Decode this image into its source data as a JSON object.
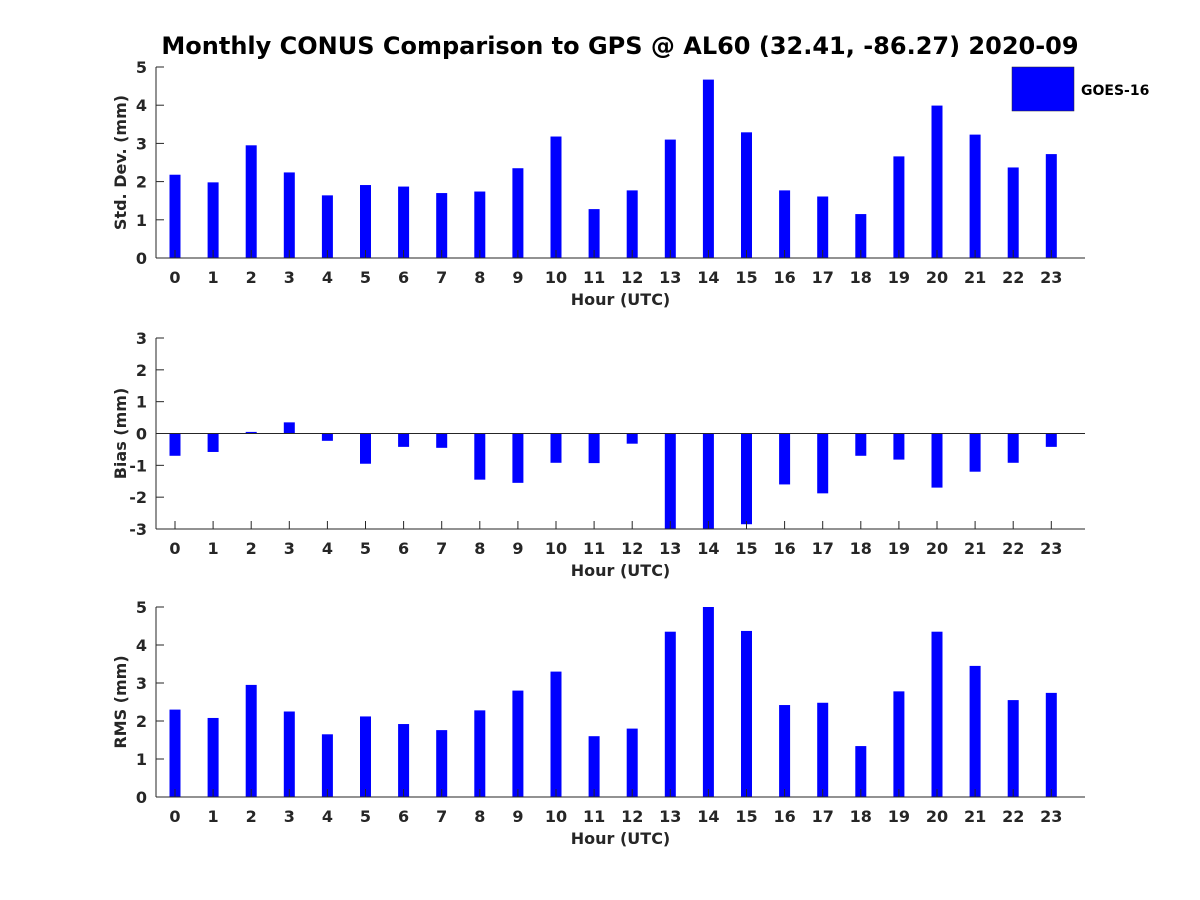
{
  "title": "Monthly CONUS Comparison to GPS @ AL60 (32.41, -86.27) 2020-09",
  "legend": {
    "label": "GOES-16",
    "color": "#0000ff",
    "placement": "top-right"
  },
  "chart_data": [
    {
      "type": "bar",
      "xlabel": "Hour (UTC)",
      "ylabel": "Std. Dev. (mm)",
      "ylim": [
        0,
        5
      ],
      "yticks": [
        0,
        1,
        2,
        3,
        4,
        5
      ],
      "categories": [
        "0",
        "1",
        "2",
        "3",
        "4",
        "5",
        "6",
        "7",
        "8",
        "9",
        "10",
        "11",
        "12",
        "13",
        "14",
        "15",
        "16",
        "17",
        "18",
        "19",
        "20",
        "21",
        "22",
        "23"
      ],
      "series": [
        {
          "name": "GOES-16",
          "color": "#0000ff",
          "values": [
            2.18,
            1.98,
            2.95,
            2.24,
            1.64,
            1.91,
            1.87,
            1.7,
            1.74,
            2.35,
            3.18,
            1.28,
            1.77,
            3.1,
            4.67,
            3.29,
            1.77,
            1.61,
            1.15,
            2.66,
            3.99,
            3.23,
            2.37,
            2.72
          ]
        }
      ]
    },
    {
      "type": "bar",
      "xlabel": "Hour (UTC)",
      "ylabel": "Bias (mm)",
      "ylim": [
        -3,
        3
      ],
      "yticks": [
        -3,
        -2,
        -1,
        0,
        1,
        2,
        3
      ],
      "categories": [
        "0",
        "1",
        "2",
        "3",
        "4",
        "5",
        "6",
        "7",
        "8",
        "9",
        "10",
        "11",
        "12",
        "13",
        "14",
        "15",
        "16",
        "17",
        "18",
        "19",
        "20",
        "21",
        "22",
        "23"
      ],
      "series": [
        {
          "name": "GOES-16",
          "color": "#0000ff",
          "values": [
            -0.7,
            -0.58,
            0.05,
            0.35,
            -0.23,
            -0.95,
            -0.42,
            -0.45,
            -1.45,
            -1.55,
            -0.92,
            -0.93,
            -0.32,
            -3.0,
            -3.0,
            -2.85,
            -1.6,
            -1.88,
            -0.7,
            -0.82,
            -1.7,
            -1.2,
            -0.92,
            -0.42
          ]
        }
      ]
    },
    {
      "type": "bar",
      "xlabel": "Hour (UTC)",
      "ylabel": "RMS (mm)",
      "ylim": [
        0,
        5
      ],
      "yticks": [
        0,
        1,
        2,
        3,
        4,
        5
      ],
      "categories": [
        "0",
        "1",
        "2",
        "3",
        "4",
        "5",
        "6",
        "7",
        "8",
        "9",
        "10",
        "11",
        "12",
        "13",
        "14",
        "15",
        "16",
        "17",
        "18",
        "19",
        "20",
        "21",
        "22",
        "23"
      ],
      "series": [
        {
          "name": "GOES-16",
          "color": "#0000ff",
          "values": [
            2.3,
            2.08,
            2.95,
            2.25,
            1.65,
            2.12,
            1.92,
            1.76,
            2.28,
            2.8,
            3.3,
            1.6,
            1.8,
            4.35,
            5.0,
            4.37,
            2.42,
            2.48,
            1.34,
            2.78,
            4.35,
            3.45,
            2.55,
            2.74
          ]
        }
      ]
    }
  ]
}
